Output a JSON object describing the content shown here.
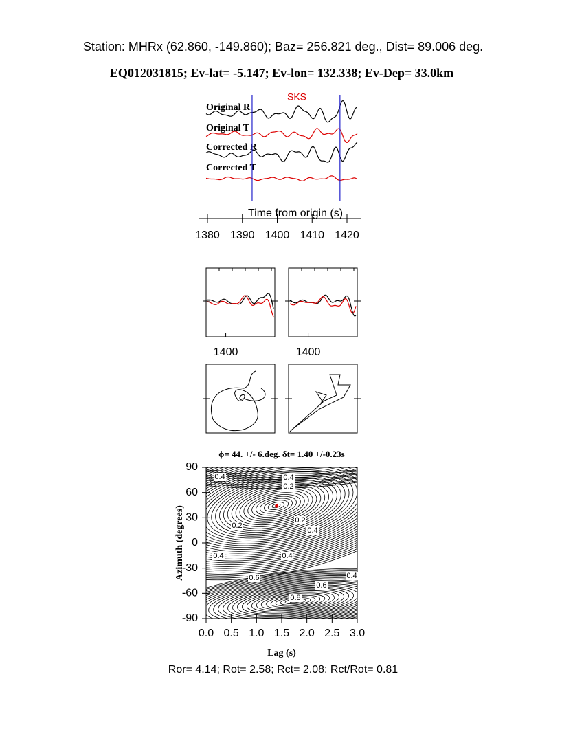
{
  "header": {
    "station": "Station: MHRx (62.860, -149.860); Baz=  256.821 deg., Dist=   89.006 deg.",
    "event": "EQ012031815; Ev-lat=  -5.147; Ev-lon= 132.338; Ev-Dep= 33.0km"
  },
  "waveforms": {
    "phase": "SKS",
    "traces": [
      "Original R",
      "Original T",
      "Corrected R",
      "Corrected T"
    ],
    "xlabel": "Time from origin (s)",
    "xlim": [
      1380,
      1420
    ],
    "xticks": [
      1380,
      1390,
      1400,
      1410,
      1420
    ],
    "window": [
      1392.8,
      1418
    ]
  },
  "panels": [
    {
      "xtick": 1400
    },
    {
      "xtick": 1400
    }
  ],
  "grid_search": {
    "title": "ϕ= 44. +/- 6.deg.  δt= 1.40 +/-0.23s",
    "xlabel": "Lag (s)",
    "ylabel": "Azimuth (degrees)",
    "xlim": [
      0,
      3
    ],
    "ylim": [
      -90,
      90
    ],
    "xticks": [
      {
        "value": 0,
        "label": "0.0"
      },
      0.5,
      {
        "value": 1,
        "label": "1.0"
      },
      1.5,
      {
        "value": 2,
        "label": "2.0"
      },
      2.5,
      {
        "value": 3,
        "label": "3.0"
      }
    ],
    "yticks": [
      90,
      60,
      30,
      0,
      -30,
      -60,
      -90
    ],
    "best": {
      "lag": 1.4,
      "azimuth": 44
    },
    "contour_labels": [
      0.4,
      0.4,
      0.2,
      0.2,
      0.2,
      0.4,
      0.4,
      0.4,
      0.6,
      0.6,
      0.8,
      0.4
    ]
  },
  "footer": "Ror= 4.14; Rot= 2.58; Rct= 2.08; Rct/Rot= 0.81"
}
